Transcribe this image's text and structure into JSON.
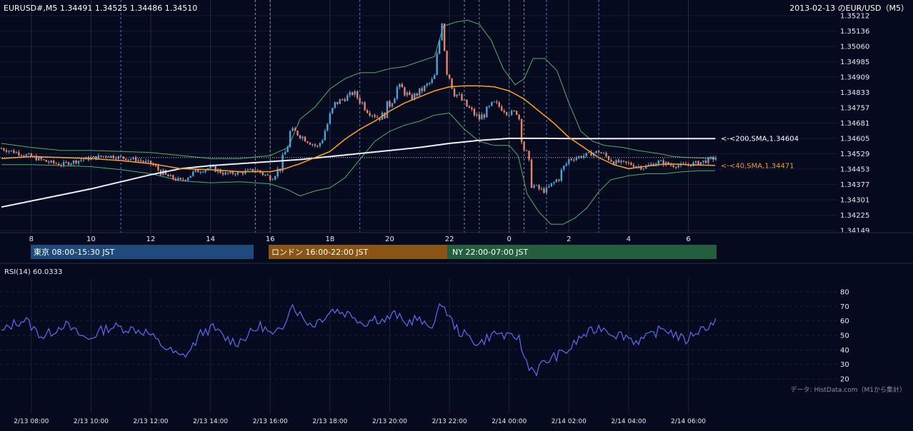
{
  "header": {
    "left": "EURUSD#,M5 1.34491 1.34525 1.34486 1.34510",
    "right": "2013-02-13 のEUR/USD（M5）"
  },
  "credit": "データ: HistData.com（M1から集計）",
  "sessions": [
    {
      "label": "東京 08:00-15:30 JST",
      "color": "#1f4b7c"
    },
    {
      "label": "ロンドン 16:00-22:00 JST",
      "color": "#8a5514"
    },
    {
      "label": "NY 22:00-07:00 JST",
      "color": "#235f3c"
    }
  ],
  "colors": {
    "background": "#060a1e",
    "bull": "#4ea3d6",
    "bear": "#e8836c",
    "sma40": "#f39a2c",
    "sma200": "#eef0f4",
    "bollinger": "#4caf6a",
    "rsi": "#5f6cf0"
  },
  "chart_data": [
    {
      "type": "candlestick",
      "title": "EURUSD#,M5 1.34491 1.34525 1.34486 1.34510",
      "symbol": "EURUSD#",
      "timeframe": "M5",
      "last_ohlc": {
        "open": 1.34491,
        "high": 1.34525,
        "low": 1.34486,
        "close": 1.3451
      },
      "ylim": [
        1.34149,
        1.35212
      ],
      "y_ticks": [
        "1.35212",
        "1.35136",
        "1.35060",
        "1.34985",
        "1.34909",
        "1.34833",
        "1.34757",
        "1.34681",
        "1.34605",
        "1.34529",
        "1.34453",
        "1.34377",
        "1.34301",
        "1.34225",
        "1.34149"
      ],
      "x_ticks": [
        "8",
        "10",
        "12",
        "14",
        "16",
        "18",
        "20",
        "22",
        "0",
        "2",
        "4",
        "6"
      ],
      "x_tick_hours": [
        8,
        10,
        12,
        14,
        16,
        18,
        20,
        22,
        24,
        26,
        28,
        30
      ],
      "x_range_hours": [
        7.0,
        30.92
      ],
      "session_divider_hours": [
        11.0,
        15.5,
        16.0,
        19.0,
        22.5,
        24.5,
        25.25,
        27.0
      ],
      "hour_divider_hours": [
        23.0,
        24.0
      ],
      "grid": true,
      "current_price": 1.3451,
      "sma200_label": "<-<200,SMA,1.34604",
      "sma40_label": "<-<40,SMA,1.34471",
      "sma200_value": 1.34604,
      "sma40_value": 1.34471,
      "close_path": [
        [
          7.0,
          1.34555
        ],
        [
          8.0,
          1.34515
        ],
        [
          8.5,
          1.3449
        ],
        [
          9.0,
          1.34475
        ],
        [
          9.7,
          1.345
        ],
        [
          10.5,
          1.3452
        ],
        [
          11.5,
          1.345
        ],
        [
          12.0,
          1.3448
        ],
        [
          12.5,
          1.3442
        ],
        [
          13.0,
          1.34395
        ],
        [
          13.5,
          1.3444
        ],
        [
          14.0,
          1.3446
        ],
        [
          14.5,
          1.3443
        ],
        [
          15.0,
          1.34435
        ],
        [
          15.5,
          1.3445
        ],
        [
          16.0,
          1.3441
        ],
        [
          16.4,
          1.3447
        ],
        [
          16.7,
          1.3465
        ],
        [
          17.2,
          1.346
        ],
        [
          17.6,
          1.3456
        ],
        [
          18.2,
          1.3478
        ],
        [
          18.8,
          1.3483
        ],
        [
          19.3,
          1.3474
        ],
        [
          19.7,
          1.347
        ],
        [
          20.0,
          1.3478
        ],
        [
          20.3,
          1.3487
        ],
        [
          20.7,
          1.348
        ],
        [
          21.2,
          1.3486
        ],
        [
          21.5,
          1.349
        ],
        [
          21.75,
          1.3519
        ],
        [
          21.9,
          1.3496
        ],
        [
          22.2,
          1.3483
        ],
        [
          22.6,
          1.3476
        ],
        [
          23.0,
          1.347
        ],
        [
          23.5,
          1.3478
        ],
        [
          24.0,
          1.3473
        ],
        [
          24.3,
          1.3474
        ],
        [
          24.5,
          1.3456
        ],
        [
          24.8,
          1.3437
        ],
        [
          25.2,
          1.3434
        ],
        [
          25.6,
          1.344
        ],
        [
          26.0,
          1.345
        ],
        [
          26.5,
          1.3452
        ],
        [
          27.0,
          1.3454
        ],
        [
          27.5,
          1.3449
        ],
        [
          28.0,
          1.3448
        ],
        [
          28.5,
          1.3446
        ],
        [
          29.0,
          1.3449
        ],
        [
          29.5,
          1.3447
        ],
        [
          30.0,
          1.34475
        ],
        [
          30.5,
          1.3449
        ],
        [
          30.92,
          1.3451
        ]
      ],
      "sma40_path": [
        [
          7.0,
          1.34505
        ],
        [
          8.0,
          1.34515
        ],
        [
          9.0,
          1.3451
        ],
        [
          10.0,
          1.34505
        ],
        [
          11.0,
          1.34495
        ],
        [
          12.0,
          1.3448
        ],
        [
          13.0,
          1.34455
        ],
        [
          14.0,
          1.3445
        ],
        [
          15.0,
          1.3444
        ],
        [
          16.0,
          1.3444
        ],
        [
          16.5,
          1.34455
        ],
        [
          17.0,
          1.3448
        ],
        [
          18.0,
          1.3454
        ],
        [
          18.5,
          1.346
        ],
        [
          19.0,
          1.3465
        ],
        [
          19.5,
          1.3469
        ],
        [
          20.0,
          1.3474
        ],
        [
          20.5,
          1.3478
        ],
        [
          21.0,
          1.3481
        ],
        [
          21.5,
          1.3484
        ],
        [
          22.0,
          1.3486
        ],
        [
          22.5,
          1.34865
        ],
        [
          23.0,
          1.34865
        ],
        [
          23.5,
          1.3486
        ],
        [
          24.0,
          1.3484
        ],
        [
          24.5,
          1.348
        ],
        [
          25.0,
          1.3474
        ],
        [
          25.5,
          1.3468
        ],
        [
          26.0,
          1.3461
        ],
        [
          26.5,
          1.3456
        ],
        [
          27.0,
          1.3451
        ],
        [
          27.5,
          1.34475
        ],
        [
          28.0,
          1.34455
        ],
        [
          28.5,
          1.34465
        ],
        [
          29.0,
          1.34475
        ],
        [
          29.5,
          1.34478
        ],
        [
          30.0,
          1.34474
        ],
        [
          30.92,
          1.34471
        ]
      ],
      "sma200_path": [
        [
          7.0,
          1.34265
        ],
        [
          8.0,
          1.34295
        ],
        [
          9.0,
          1.34325
        ],
        [
          10.0,
          1.34355
        ],
        [
          11.0,
          1.3439
        ],
        [
          12.0,
          1.34425
        ],
        [
          13.0,
          1.34455
        ],
        [
          14.0,
          1.3447
        ],
        [
          15.0,
          1.3448
        ],
        [
          16.0,
          1.3449
        ],
        [
          17.0,
          1.345
        ],
        [
          18.0,
          1.34515
        ],
        [
          19.0,
          1.3453
        ],
        [
          20.0,
          1.34545
        ],
        [
          21.0,
          1.3456
        ],
        [
          22.0,
          1.3458
        ],
        [
          23.0,
          1.34595
        ],
        [
          24.0,
          1.34605
        ],
        [
          25.0,
          1.34605
        ],
        [
          26.0,
          1.34604
        ],
        [
          27.0,
          1.34604
        ],
        [
          28.0,
          1.34604
        ],
        [
          29.0,
          1.34604
        ],
        [
          30.0,
          1.34604
        ],
        [
          30.92,
          1.34604
        ]
      ],
      "bb_upper_path": [
        [
          7.0,
          1.3458
        ],
        [
          8.0,
          1.3456
        ],
        [
          9.0,
          1.34545
        ],
        [
          10.0,
          1.34545
        ],
        [
          11.0,
          1.3454
        ],
        [
          12.0,
          1.34535
        ],
        [
          13.0,
          1.3452
        ],
        [
          14.0,
          1.34505
        ],
        [
          15.0,
          1.34505
        ],
        [
          16.0,
          1.3452
        ],
        [
          16.6,
          1.3456
        ],
        [
          17.0,
          1.347
        ],
        [
          17.5,
          1.3476
        ],
        [
          18.0,
          1.3485
        ],
        [
          18.5,
          1.349
        ],
        [
          19.0,
          1.3493
        ],
        [
          19.5,
          1.3493
        ],
        [
          20.0,
          1.3495
        ],
        [
          20.5,
          1.3496
        ],
        [
          21.0,
          1.34985
        ],
        [
          21.5,
          1.3501
        ],
        [
          21.8,
          1.3516
        ],
        [
          22.2,
          1.3518
        ],
        [
          22.6,
          1.3519
        ],
        [
          23.0,
          1.3517
        ],
        [
          23.4,
          1.3509
        ],
        [
          23.8,
          1.3495
        ],
        [
          24.2,
          1.3487
        ],
        [
          24.5,
          1.349
        ],
        [
          24.8,
          1.35
        ],
        [
          25.2,
          1.35
        ],
        [
          25.6,
          1.3494
        ],
        [
          26.0,
          1.3478
        ],
        [
          26.4,
          1.3464
        ],
        [
          26.8,
          1.3459
        ],
        [
          27.2,
          1.3457
        ],
        [
          27.8,
          1.3456
        ],
        [
          28.3,
          1.34545
        ],
        [
          29.0,
          1.3453
        ],
        [
          29.5,
          1.34515
        ],
        [
          30.0,
          1.3451
        ],
        [
          30.92,
          1.34505
        ]
      ],
      "bb_lower_path": [
        [
          7.0,
          1.34475
        ],
        [
          8.0,
          1.34475
        ],
        [
          9.0,
          1.3447
        ],
        [
          10.0,
          1.34465
        ],
        [
          11.0,
          1.3445
        ],
        [
          12.0,
          1.3443
        ],
        [
          13.0,
          1.34395
        ],
        [
          14.0,
          1.34385
        ],
        [
          15.0,
          1.3439
        ],
        [
          16.0,
          1.3438
        ],
        [
          16.6,
          1.3435
        ],
        [
          17.0,
          1.3432
        ],
        [
          17.5,
          1.34345
        ],
        [
          18.0,
          1.3436
        ],
        [
          18.5,
          1.3441
        ],
        [
          19.0,
          1.345
        ],
        [
          19.5,
          1.3459
        ],
        [
          20.0,
          1.3464
        ],
        [
          20.5,
          1.3467
        ],
        [
          21.0,
          1.3469
        ],
        [
          21.5,
          1.3472
        ],
        [
          22.0,
          1.3473
        ],
        [
          22.5,
          1.3465
        ],
        [
          23.0,
          1.3459
        ],
        [
          23.5,
          1.3457
        ],
        [
          24.0,
          1.3457
        ],
        [
          24.3,
          1.3452
        ],
        [
          24.6,
          1.3433
        ],
        [
          25.0,
          1.3424
        ],
        [
          25.4,
          1.3418
        ],
        [
          25.8,
          1.3418
        ],
        [
          26.2,
          1.3421
        ],
        [
          26.6,
          1.3426
        ],
        [
          27.0,
          1.3434
        ],
        [
          27.4,
          1.344
        ],
        [
          28.0,
          1.3442
        ],
        [
          28.6,
          1.3443
        ],
        [
          29.2,
          1.3443
        ],
        [
          29.8,
          1.3444
        ],
        [
          30.4,
          1.34445
        ],
        [
          30.92,
          1.34445
        ]
      ]
    },
    {
      "type": "line",
      "title": "RSI(14) 60.0333",
      "name": "RSI(14)",
      "last_value": 60.0333,
      "ylim": [
        20,
        80
      ],
      "y_ticks": [
        80,
        70,
        60,
        50,
        40,
        30,
        20
      ],
      "x_ticks": [
        "2/13 08:00",
        "2/13 10:00",
        "2/13 12:00",
        "2/13 14:00",
        "2/13 16:00",
        "2/13 18:00",
        "2/13 20:00",
        "2/13 22:00",
        "2/14 00:00",
        "2/14 02:00",
        "2/14 04:00",
        "2/14 06:00"
      ],
      "x_tick_hours": [
        8,
        10,
        12,
        14,
        16,
        18,
        20,
        22,
        24,
        26,
        28,
        30
      ],
      "x_range_hours": [
        7.0,
        30.92
      ],
      "grid": true,
      "rsi_path": [
        [
          7.0,
          52
        ],
        [
          7.4,
          58
        ],
        [
          7.8,
          61
        ],
        [
          8.1,
          54
        ],
        [
          8.4,
          49
        ],
        [
          8.8,
          54
        ],
        [
          9.1,
          58
        ],
        [
          9.5,
          52
        ],
        [
          9.9,
          47
        ],
        [
          10.3,
          53
        ],
        [
          10.7,
          56
        ],
        [
          11.1,
          55
        ],
        [
          11.5,
          54
        ],
        [
          11.9,
          52
        ],
        [
          12.2,
          46
        ],
        [
          12.6,
          40
        ],
        [
          13.0,
          35
        ],
        [
          13.3,
          39
        ],
        [
          13.7,
          52
        ],
        [
          14.1,
          55
        ],
        [
          14.5,
          48
        ],
        [
          14.9,
          45
        ],
        [
          15.3,
          51
        ],
        [
          15.7,
          57
        ],
        [
          16.1,
          49
        ],
        [
          16.4,
          55
        ],
        [
          16.7,
          72
        ],
        [
          17.1,
          62
        ],
        [
          17.4,
          57
        ],
        [
          17.8,
          63
        ],
        [
          18.1,
          68
        ],
        [
          18.4,
          66
        ],
        [
          18.8,
          64
        ],
        [
          19.1,
          58
        ],
        [
          19.5,
          62
        ],
        [
          19.8,
          60
        ],
        [
          20.2,
          65
        ],
        [
          20.5,
          58
        ],
        [
          20.9,
          62
        ],
        [
          21.2,
          56
        ],
        [
          21.5,
          59
        ],
        [
          21.75,
          73
        ],
        [
          22.0,
          62
        ],
        [
          22.3,
          53
        ],
        [
          22.7,
          48
        ],
        [
          23.0,
          44
        ],
        [
          23.3,
          49
        ],
        [
          23.6,
          52
        ],
        [
          24.0,
          48
        ],
        [
          24.3,
          50
        ],
        [
          24.5,
          35
        ],
        [
          24.7,
          28
        ],
        [
          24.9,
          25
        ],
        [
          25.1,
          30
        ],
        [
          25.4,
          34
        ],
        [
          25.7,
          37
        ],
        [
          26.0,
          40
        ],
        [
          26.4,
          49
        ],
        [
          26.8,
          53
        ],
        [
          27.1,
          56
        ],
        [
          27.5,
          51
        ],
        [
          27.9,
          50
        ],
        [
          28.2,
          46
        ],
        [
          28.6,
          48
        ],
        [
          28.9,
          52
        ],
        [
          29.2,
          55
        ],
        [
          29.6,
          50
        ],
        [
          29.9,
          46
        ],
        [
          30.2,
          52
        ],
        [
          30.5,
          55
        ],
        [
          30.7,
          57
        ],
        [
          30.92,
          60
        ]
      ]
    }
  ]
}
